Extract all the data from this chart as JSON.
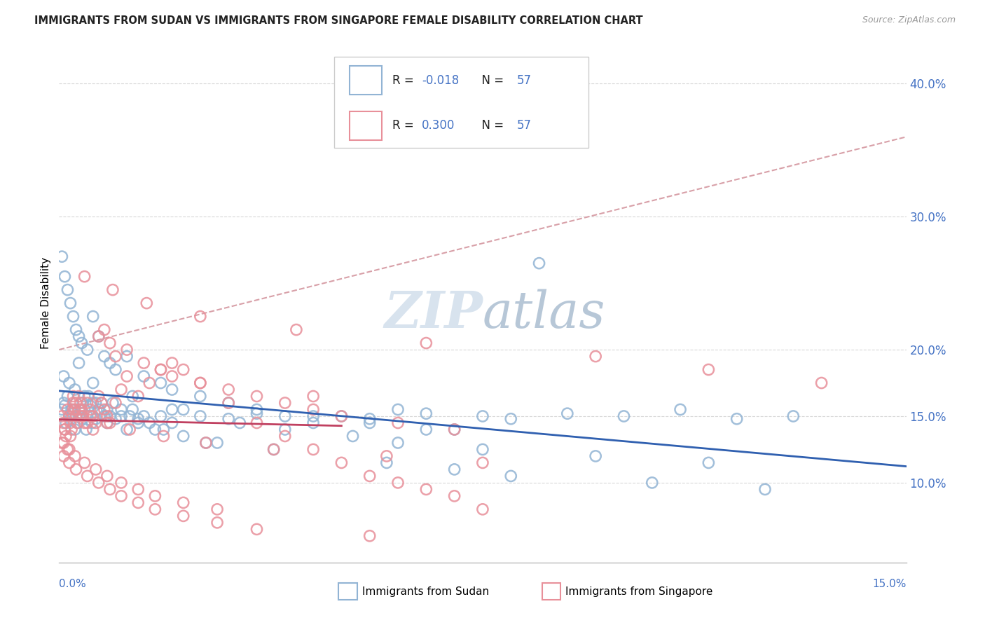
{
  "title": "IMMIGRANTS FROM SUDAN VS IMMIGRANTS FROM SINGAPORE FEMALE DISABILITY CORRELATION CHART",
  "source": "Source: ZipAtlas.com",
  "ylabel": "Female Disability",
  "xlim": [
    0.0,
    15.0
  ],
  "ylim": [
    4.0,
    43.0
  ],
  "ytick_vals": [
    10.0,
    15.0,
    20.0,
    30.0,
    40.0
  ],
  "ytick_labels": [
    "10.0%",
    "15.0%",
    "20.0%",
    "30.0%",
    "40.0%"
  ],
  "sudan_R": "-0.018",
  "sudan_N": "57",
  "singapore_R": "0.300",
  "singapore_N": "57",
  "sudan_color": "#92b4d4",
  "singapore_color": "#e8909a",
  "sudan_line_color": "#3060b0",
  "singapore_line_color": "#c04060",
  "diag_line_color": "#d8a0a8",
  "tick_color": "#4472c4",
  "grid_color": "#d8d8d8",
  "title_color": "#222222",
  "source_color": "#999999",
  "watermark_color": "#d0dce8",
  "sudan_scatter_x": [
    0.05,
    0.08,
    0.1,
    0.12,
    0.15,
    0.18,
    0.2,
    0.22,
    0.25,
    0.28,
    0.3,
    0.32,
    0.35,
    0.38,
    0.4,
    0.42,
    0.45,
    0.48,
    0.5,
    0.52,
    0.55,
    0.58,
    0.6,
    0.65,
    0.7,
    0.75,
    0.8,
    0.85,
    0.9,
    0.95,
    1.0,
    1.1,
    1.2,
    1.3,
    1.4,
    1.5,
    1.6,
    1.8,
    2.0,
    2.2,
    2.5,
    3.0,
    3.5,
    4.0,
    4.5,
    5.0,
    5.5,
    6.0,
    6.5,
    7.0,
    7.5,
    8.0,
    9.0,
    10.0,
    11.0,
    12.0,
    13.0
  ],
  "sudan_scatter_y": [
    15.5,
    16.0,
    15.8,
    14.5,
    16.5,
    15.0,
    14.8,
    15.5,
    15.2,
    14.0,
    15.0,
    14.5,
    15.0,
    15.5,
    14.8,
    16.0,
    15.5,
    14.0,
    15.0,
    16.5,
    15.8,
    14.5,
    16.0,
    14.8,
    15.5,
    15.2,
    15.0,
    14.5,
    15.0,
    16.0,
    14.8,
    15.5,
    14.0,
    15.5,
    14.8,
    15.0,
    14.5,
    15.0,
    14.5,
    15.5,
    15.0,
    14.8,
    15.2,
    15.0,
    14.5,
    15.0,
    14.8,
    15.5,
    15.2,
    14.0,
    15.0,
    14.8,
    15.2,
    15.0,
    15.5,
    14.8,
    15.0
  ],
  "sudan_scatter_x2": [
    0.05,
    0.1,
    0.15,
    0.2,
    0.25,
    0.3,
    0.35,
    0.4,
    0.5,
    0.6,
    0.7,
    0.8,
    0.9,
    1.0,
    1.2,
    1.5,
    1.8,
    2.0,
    2.5,
    3.0,
    3.5,
    4.5,
    5.5,
    6.5,
    8.5,
    0.08,
    0.18,
    0.28,
    0.45,
    0.65,
    0.85,
    1.1,
    1.4,
    1.7,
    2.2,
    2.8,
    0.6,
    1.3,
    2.0,
    3.2,
    4.0,
    5.2,
    6.0,
    7.5,
    9.5,
    11.5,
    0.35,
    0.75,
    1.25,
    1.85,
    2.6,
    3.8,
    5.8,
    7.0,
    8.0,
    10.5,
    12.5
  ],
  "sudan_scatter_y2": [
    27.0,
    25.5,
    24.5,
    23.5,
    22.5,
    21.5,
    21.0,
    20.5,
    20.0,
    22.5,
    21.0,
    19.5,
    19.0,
    18.5,
    19.5,
    18.0,
    17.5,
    17.0,
    16.5,
    16.0,
    15.5,
    15.0,
    14.5,
    14.0,
    26.5,
    18.0,
    17.5,
    17.0,
    16.5,
    16.0,
    15.5,
    15.0,
    14.5,
    14.0,
    13.5,
    13.0,
    17.5,
    16.5,
    15.5,
    14.5,
    14.0,
    13.5,
    13.0,
    12.5,
    12.0,
    11.5,
    19.0,
    16.0,
    15.0,
    14.0,
    13.0,
    12.5,
    11.5,
    11.0,
    10.5,
    10.0,
    9.5
  ],
  "singapore_scatter_x": [
    0.05,
    0.08,
    0.1,
    0.12,
    0.15,
    0.18,
    0.2,
    0.22,
    0.25,
    0.28,
    0.3,
    0.32,
    0.35,
    0.38,
    0.4,
    0.42,
    0.45,
    0.5,
    0.55,
    0.6,
    0.65,
    0.7,
    0.75,
    0.8,
    0.85,
    0.9,
    1.0,
    1.1,
    1.2,
    1.4,
    1.6,
    1.8,
    2.0,
    2.2,
    2.5,
    3.0,
    3.5,
    4.0,
    4.5,
    5.0,
    5.5,
    6.0,
    6.5,
    7.0,
    0.08,
    0.18,
    0.28,
    0.45,
    0.65,
    0.85,
    1.1,
    1.4,
    1.7,
    2.2,
    2.8,
    4.5,
    7.5
  ],
  "singapore_scatter_y": [
    15.0,
    14.5,
    14.0,
    13.5,
    15.5,
    15.0,
    14.5,
    14.0,
    16.0,
    15.5,
    15.0,
    14.5,
    16.5,
    16.0,
    15.5,
    15.0,
    14.5,
    16.0,
    15.5,
    15.0,
    14.5,
    16.5,
    16.0,
    15.5,
    15.0,
    14.5,
    16.0,
    17.0,
    18.0,
    16.5,
    17.5,
    18.5,
    19.0,
    18.5,
    17.5,
    16.0,
    14.5,
    13.5,
    12.5,
    11.5,
    10.5,
    10.0,
    9.5,
    9.0,
    13.0,
    12.5,
    12.0,
    11.5,
    11.0,
    10.5,
    10.0,
    9.5,
    9.0,
    8.5,
    8.0,
    16.5,
    8.0
  ],
  "singapore_scatter_x2": [
    0.05,
    0.1,
    0.15,
    0.2,
    0.25,
    0.3,
    0.35,
    0.4,
    0.5,
    0.6,
    0.7,
    0.8,
    0.9,
    1.0,
    1.2,
    1.5,
    1.8,
    2.0,
    2.5,
    3.0,
    3.5,
    4.0,
    4.5,
    5.0,
    6.0,
    7.0,
    0.08,
    0.18,
    0.3,
    0.5,
    0.7,
    0.9,
    1.1,
    1.4,
    1.7,
    2.2,
    2.8,
    3.5,
    5.5,
    0.25,
    0.55,
    0.85,
    1.25,
    1.85,
    2.6,
    3.8,
    5.8,
    7.5,
    0.45,
    0.95,
    1.55,
    2.5,
    4.2,
    6.5,
    9.5,
    11.5,
    13.5
  ],
  "singapore_scatter_y2": [
    13.0,
    14.0,
    12.5,
    13.5,
    16.5,
    16.0,
    15.5,
    15.0,
    14.5,
    14.0,
    21.0,
    21.5,
    20.5,
    19.5,
    20.0,
    19.0,
    18.5,
    18.0,
    17.5,
    17.0,
    16.5,
    16.0,
    15.5,
    15.0,
    14.5,
    14.0,
    12.0,
    11.5,
    11.0,
    10.5,
    10.0,
    9.5,
    9.0,
    8.5,
    8.0,
    7.5,
    7.0,
    6.5,
    6.0,
    15.5,
    15.0,
    14.5,
    14.0,
    13.5,
    13.0,
    12.5,
    12.0,
    11.5,
    25.5,
    24.5,
    23.5,
    22.5,
    21.5,
    20.5,
    19.5,
    18.5,
    17.5
  ]
}
